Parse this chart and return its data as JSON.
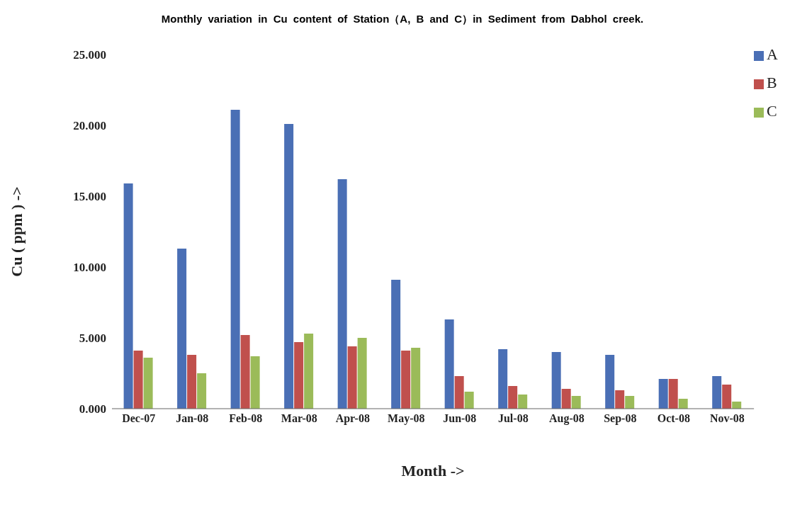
{
  "chart_data": {
    "type": "bar",
    "title": "Monthly variation in Cu content of Station（A, B and C）in Sediment from Dabhol creek.",
    "xlabel": "Month ->",
    "ylabel": "Cu ( ppm ) ->",
    "categories": [
      "Dec-07",
      "Jan-08",
      "Feb-08",
      "Mar-08",
      "Apr-08",
      "May-08",
      "Jun-08",
      "Jul-08",
      "Aug-08",
      "Sep-08",
      "Oct-08",
      "Nov-08"
    ],
    "series": [
      {
        "name": "A",
        "color": "#4a6fb5",
        "values": [
          15.9,
          11.3,
          21.1,
          20.1,
          16.2,
          9.1,
          6.3,
          4.2,
          4.0,
          3.8,
          2.1,
          2.3
        ]
      },
      {
        "name": "B",
        "color": "#c0504d",
        "values": [
          4.1,
          3.8,
          5.2,
          4.7,
          4.4,
          4.1,
          2.3,
          1.6,
          1.4,
          1.3,
          2.1,
          1.7
        ]
      },
      {
        "name": "C",
        "color": "#9bbb59",
        "values": [
          3.6,
          2.5,
          3.7,
          5.3,
          5.0,
          4.3,
          1.2,
          1.0,
          0.9,
          0.9,
          0.7,
          0.5
        ]
      }
    ],
    "ylim": [
      0,
      25
    ],
    "yticks": [
      {
        "value": 0,
        "label": "0.000"
      },
      {
        "value": 5,
        "label": "5.000"
      },
      {
        "value": 10,
        "label": "10.000"
      },
      {
        "value": 15,
        "label": "15.000"
      },
      {
        "value": 20,
        "label": "20.000"
      },
      {
        "value": 25,
        "label": "25.000"
      }
    ],
    "grid": false,
    "legend": "top right"
  }
}
